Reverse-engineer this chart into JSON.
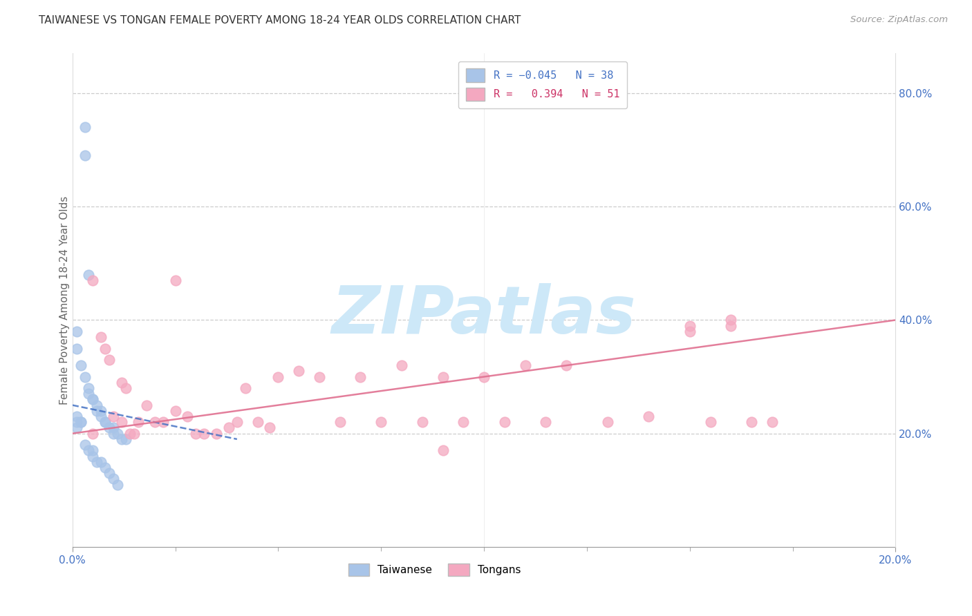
{
  "title": "TAIWANESE VS TONGAN FEMALE POVERTY AMONG 18-24 YEAR OLDS CORRELATION CHART",
  "source": "Source: ZipAtlas.com",
  "ylabel": "Female Poverty Among 18-24 Year Olds",
  "xlim": [
    0.0,
    0.2
  ],
  "ylim": [
    0.0,
    0.87
  ],
  "xtick_labels_show": [
    0.0,
    0.2
  ],
  "xtick_minor": [
    0.025,
    0.05,
    0.075,
    0.1,
    0.125,
    0.15,
    0.175
  ],
  "yticks_right": [
    0.2,
    0.4,
    0.6,
    0.8
  ],
  "taiwan_R": -0.045,
  "taiwan_N": 38,
  "tongan_R": 0.394,
  "tongan_N": 51,
  "taiwan_color": "#a8c4e8",
  "tongan_color": "#f4a8c0",
  "taiwan_line_color": "#4472c4",
  "tongan_line_color": "#e07090",
  "background_color": "#ffffff",
  "grid_color": "#cccccc",
  "watermark_text": "ZIPatlas",
  "watermark_color": "#cde8f8",
  "axis_label_color": "#4472c4",
  "title_color": "#333333",
  "source_color": "#999999",
  "taiwan_x": [
    0.003,
    0.003,
    0.004,
    0.001,
    0.001,
    0.002,
    0.003,
    0.004,
    0.004,
    0.005,
    0.005,
    0.006,
    0.006,
    0.007,
    0.007,
    0.008,
    0.008,
    0.009,
    0.01,
    0.01,
    0.011,
    0.012,
    0.013,
    0.001,
    0.001,
    0.001,
    0.002,
    0.002,
    0.003,
    0.004,
    0.005,
    0.005,
    0.006,
    0.007,
    0.008,
    0.009,
    0.01,
    0.011
  ],
  "taiwan_y": [
    0.74,
    0.69,
    0.48,
    0.38,
    0.35,
    0.32,
    0.3,
    0.28,
    0.27,
    0.26,
    0.26,
    0.25,
    0.24,
    0.24,
    0.23,
    0.22,
    0.22,
    0.21,
    0.21,
    0.2,
    0.2,
    0.19,
    0.19,
    0.22,
    0.21,
    0.23,
    0.22,
    0.22,
    0.18,
    0.17,
    0.17,
    0.16,
    0.15,
    0.15,
    0.14,
    0.13,
    0.12,
    0.11
  ],
  "tongan_x": [
    0.005,
    0.005,
    0.007,
    0.008,
    0.009,
    0.01,
    0.012,
    0.012,
    0.013,
    0.014,
    0.015,
    0.016,
    0.018,
    0.02,
    0.022,
    0.025,
    0.025,
    0.028,
    0.03,
    0.032,
    0.035,
    0.038,
    0.04,
    0.042,
    0.045,
    0.048,
    0.05,
    0.055,
    0.06,
    0.065,
    0.07,
    0.075,
    0.08,
    0.085,
    0.09,
    0.095,
    0.1,
    0.105,
    0.11,
    0.115,
    0.12,
    0.13,
    0.14,
    0.15,
    0.155,
    0.16,
    0.165,
    0.17,
    0.09,
    0.15,
    0.16
  ],
  "tongan_y": [
    0.47,
    0.2,
    0.37,
    0.35,
    0.33,
    0.23,
    0.29,
    0.22,
    0.28,
    0.2,
    0.2,
    0.22,
    0.25,
    0.22,
    0.22,
    0.24,
    0.47,
    0.23,
    0.2,
    0.2,
    0.2,
    0.21,
    0.22,
    0.28,
    0.22,
    0.21,
    0.3,
    0.31,
    0.3,
    0.22,
    0.3,
    0.22,
    0.32,
    0.22,
    0.3,
    0.22,
    0.3,
    0.22,
    0.32,
    0.22,
    0.32,
    0.22,
    0.23,
    0.39,
    0.22,
    0.39,
    0.22,
    0.22,
    0.17,
    0.38,
    0.4
  ],
  "tongan_line_x0": 0.0,
  "tongan_line_y0": 0.2,
  "tongan_line_x1": 0.2,
  "tongan_line_y1": 0.4,
  "taiwan_line_x0": 0.0,
  "taiwan_line_y0": 0.25,
  "taiwan_line_x1": 0.04,
  "taiwan_line_y1": 0.19
}
